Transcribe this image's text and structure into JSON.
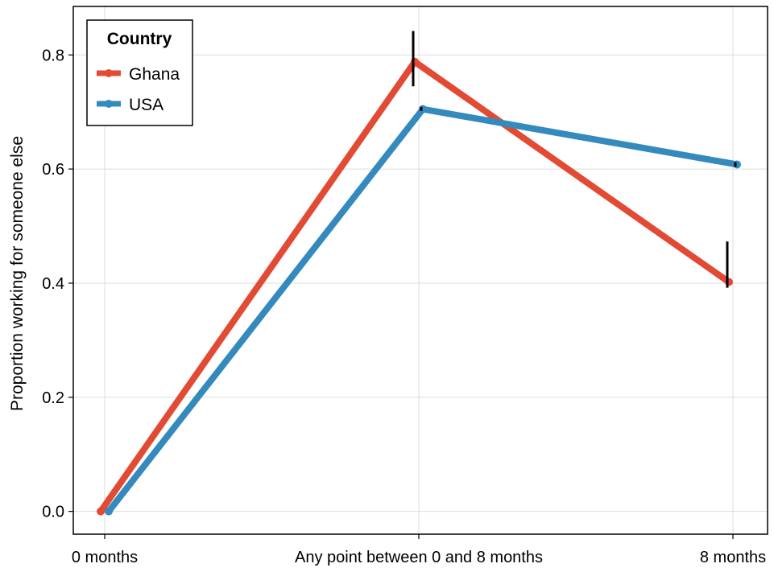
{
  "chart_data": {
    "type": "line",
    "title": "",
    "xlabel": "",
    "ylabel": "Proportion working for someone else",
    "categories": [
      "0 months",
      "Any point between 0 and 8 months",
      "8 months"
    ],
    "ylim": [
      -0.04,
      0.885
    ],
    "yticks": [
      "0.0",
      "0.2",
      "0.4",
      "0.6",
      "0.8"
    ],
    "grid": true,
    "legend": {
      "title": "Country",
      "position": "top-left"
    },
    "series": [
      {
        "name": "Ghana",
        "color": "#e24a33",
        "values": [
          0.0,
          0.788,
          0.402
        ],
        "error_low": [
          0.0,
          0.745,
          0.392
        ],
        "error_high": [
          0.0,
          0.842,
          0.473
        ]
      },
      {
        "name": "USA",
        "color": "#348abd",
        "values": [
          0.0,
          0.705,
          0.608
        ],
        "error_low": [
          0.0,
          0.702,
          0.604
        ],
        "error_high": [
          0.0,
          0.709,
          0.612
        ]
      }
    ]
  }
}
